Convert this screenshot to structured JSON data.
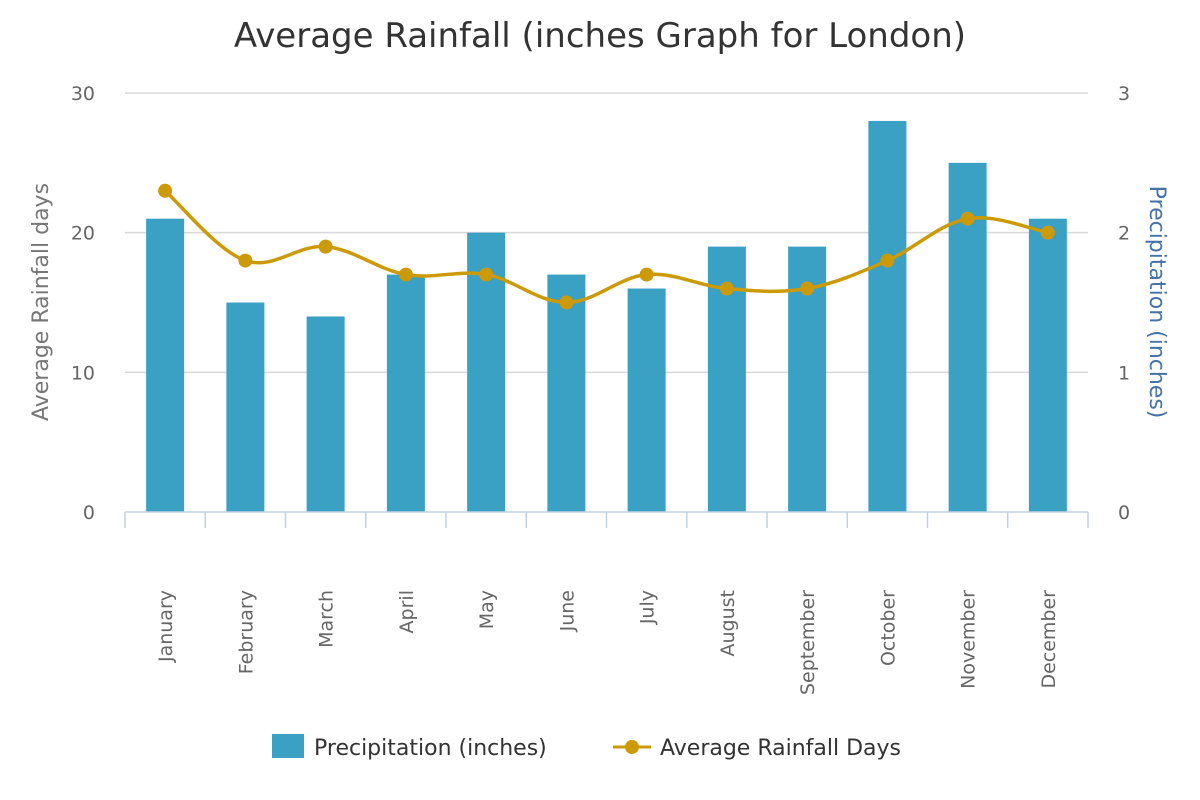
{
  "chart_data": {
    "type": "bar",
    "title": "Average Rainfall (inches Graph for London)",
    "categories": [
      "January",
      "February",
      "March",
      "April",
      "May",
      "June",
      "July",
      "August",
      "September",
      "October",
      "November",
      "December"
    ],
    "series": [
      {
        "name": "Precipitation (inches)",
        "type": "bar",
        "axis": "right",
        "color": "#3aa0c4",
        "values": [
          2.1,
          1.5,
          1.4,
          1.7,
          2.0,
          1.7,
          1.6,
          1.9,
          1.9,
          2.8,
          2.5,
          2.1
        ]
      },
      {
        "name": "Average Rainfall Days",
        "type": "line",
        "axis": "left",
        "color": "#cc9a06",
        "values": [
          23,
          18,
          19,
          17,
          17,
          15,
          17,
          16,
          16,
          18,
          21,
          20
        ]
      }
    ],
    "ylabel_left": "Average Rainfall days",
    "ylabel_right": "Precipitation (inches)",
    "ylim_left": [
      0,
      30
    ],
    "ylim_right": [
      0,
      3
    ],
    "yticks_left": [
      "0",
      "10",
      "20",
      "30"
    ],
    "yticks_right": [
      "0",
      "1",
      "2",
      "3"
    ],
    "grid": true,
    "legend_position": "bottom"
  }
}
